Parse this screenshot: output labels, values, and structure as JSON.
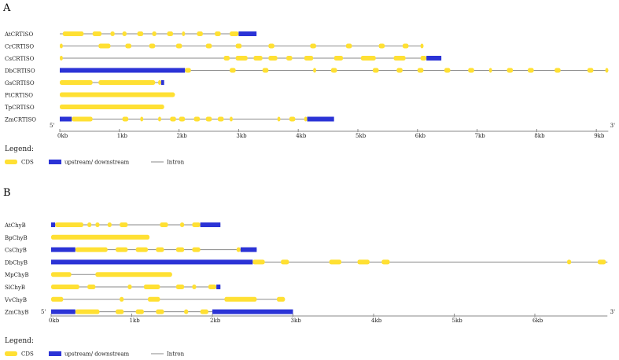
{
  "colors": {
    "cds": "#ffe033",
    "utr": "#2b33d6",
    "intron": "#8a8a8a",
    "axis": "#888888"
  },
  "panels": [
    {
      "letter": "A",
      "five_prime": "5'",
      "three_prime": "3'",
      "ticks": [
        "0kb",
        "1kb",
        "2kb",
        "3kb",
        "4kb",
        "5kb",
        "6kb",
        "7kb",
        "8kb",
        "9kb"
      ],
      "axis_max_kb": 9.2,
      "legend": {
        "title": "Legend:",
        "cds": "CDS",
        "utr": "upstream/ downstream",
        "intron": "Intron"
      },
      "genes": [
        {
          "name": "AtCRTISO",
          "span": [
            0,
            3.3
          ],
          "cds": [
            [
              0.05,
              0.4
            ],
            [
              0.55,
              0.7
            ],
            [
              0.85,
              0.92
            ],
            [
              1.05,
              1.12
            ],
            [
              1.3,
              1.4
            ],
            [
              1.55,
              1.62
            ],
            [
              1.8,
              1.9
            ],
            [
              2.05,
              2.1
            ],
            [
              2.3,
              2.4
            ],
            [
              2.6,
              2.7
            ],
            [
              2.85,
              3.0
            ]
          ],
          "utr": [
            [
              3.0,
              3.3
            ]
          ]
        },
        {
          "name": "CrCRTISO",
          "span": [
            0,
            6.1
          ],
          "cds": [
            [
              0.0,
              0.05
            ],
            [
              0.65,
              0.85
            ],
            [
              1.1,
              1.2
            ],
            [
              1.5,
              1.6
            ],
            [
              1.95,
              2.05
            ],
            [
              2.45,
              2.55
            ],
            [
              2.95,
              3.05
            ],
            [
              3.5,
              3.6
            ],
            [
              4.2,
              4.3
            ],
            [
              4.8,
              4.9
            ],
            [
              5.35,
              5.45
            ],
            [
              5.75,
              5.85
            ],
            [
              6.05,
              6.1
            ]
          ],
          "utr": []
        },
        {
          "name": "CsCRTISO",
          "span": [
            0,
            6.4
          ],
          "cds": [
            [
              0.0,
              0.05
            ],
            [
              2.75,
              2.85
            ],
            [
              2.95,
              3.15
            ],
            [
              3.25,
              3.4
            ],
            [
              3.5,
              3.65
            ],
            [
              3.8,
              3.9
            ],
            [
              4.1,
              4.25
            ],
            [
              4.6,
              4.75
            ],
            [
              5.05,
              5.3
            ],
            [
              5.6,
              5.8
            ],
            [
              6.05,
              6.15
            ]
          ],
          "utr": [
            [
              6.15,
              6.4
            ]
          ]
        },
        {
          "name": "DbCRTISO",
          "span": [
            0,
            9.2
          ],
          "cds": [
            [
              2.1,
              2.2
            ],
            [
              2.85,
              2.95
            ],
            [
              3.4,
              3.5
            ],
            [
              4.25,
              4.3
            ],
            [
              4.55,
              4.65
            ],
            [
              5.25,
              5.35
            ],
            [
              5.65,
              5.75
            ],
            [
              6.0,
              6.1
            ],
            [
              6.45,
              6.55
            ],
            [
              6.85,
              6.95
            ],
            [
              7.2,
              7.25
            ],
            [
              7.5,
              7.6
            ],
            [
              7.85,
              7.95
            ],
            [
              8.3,
              8.4
            ],
            [
              8.85,
              8.95
            ],
            [
              9.15,
              9.2
            ]
          ],
          "utr": [
            [
              0.0,
              2.1
            ]
          ]
        },
        {
          "name": "GsCRTISO",
          "span": [
            0,
            1.75
          ],
          "cds": [
            [
              0.0,
              0.55
            ],
            [
              0.65,
              1.6
            ],
            [
              1.65,
              1.7
            ]
          ],
          "utr": [
            [
              1.7,
              1.75
            ]
          ]
        },
        {
          "name": "PtCRTISO",
          "span": [
            0,
            1.93
          ],
          "cds": [
            [
              0.0,
              1.93
            ]
          ],
          "utr": []
        },
        {
          "name": "TpCRTISO",
          "span": [
            0,
            1.75
          ],
          "cds": [
            [
              0.0,
              1.75
            ]
          ],
          "utr": []
        },
        {
          "name": "ZmCRTISO",
          "span": [
            0,
            4.6
          ],
          "cds": [
            [
              0.2,
              0.55
            ],
            [
              1.05,
              1.15
            ],
            [
              1.35,
              1.4
            ],
            [
              1.65,
              1.7
            ],
            [
              1.85,
              1.95
            ],
            [
              2.0,
              2.1
            ],
            [
              2.25,
              2.35
            ],
            [
              2.45,
              2.55
            ],
            [
              2.65,
              2.75
            ],
            [
              2.85,
              2.9
            ],
            [
              3.65,
              3.7
            ],
            [
              3.85,
              3.95
            ],
            [
              4.1,
              4.15
            ]
          ],
          "utr": [
            [
              0.0,
              0.2
            ],
            [
              4.15,
              4.6
            ]
          ]
        }
      ]
    },
    {
      "letter": "B",
      "five_prime": "5'",
      "three_prime": "3'",
      "ticks": [
        "0kb",
        "1kb",
        "2kb",
        "3kb",
        "4kb",
        "5kb",
        "6kb"
      ],
      "axis_max_kb": 6.9,
      "legend": {
        "title": "Legend:",
        "cds": "CDS",
        "utr": "upstream/ downstream",
        "intron": "Intron"
      },
      "genes": [
        {
          "name": "AtChyB",
          "span": [
            0,
            2.1
          ],
          "cds": [
            [
              0.05,
              0.4
            ],
            [
              0.45,
              0.5
            ],
            [
              0.55,
              0.6
            ],
            [
              0.7,
              0.75
            ],
            [
              0.85,
              0.95
            ],
            [
              1.35,
              1.45
            ],
            [
              1.6,
              1.65
            ],
            [
              1.75,
              1.85
            ]
          ],
          "utr": [
            [
              0.0,
              0.05
            ],
            [
              1.85,
              2.1
            ]
          ]
        },
        {
          "name": "BpChyB",
          "span": [
            0,
            1.22
          ],
          "cds": [
            [
              0.0,
              1.22
            ]
          ],
          "utr": []
        },
        {
          "name": "CsChyB",
          "span": [
            0,
            2.55
          ],
          "cds": [
            [
              0.3,
              0.7
            ],
            [
              0.8,
              0.95
            ],
            [
              1.05,
              1.2
            ],
            [
              1.3,
              1.4
            ],
            [
              1.55,
              1.65
            ],
            [
              1.75,
              1.85
            ],
            [
              2.3,
              2.35
            ]
          ],
          "utr": [
            [
              0.0,
              0.3
            ],
            [
              2.35,
              2.55
            ]
          ]
        },
        {
          "name": "DbChyB",
          "span": [
            0,
            6.9
          ],
          "cds": [
            [
              2.5,
              2.65
            ],
            [
              2.85,
              2.95
            ],
            [
              3.45,
              3.6
            ],
            [
              3.8,
              3.95
            ],
            [
              4.1,
              4.2
            ],
            [
              6.4,
              6.45
            ],
            [
              6.78,
              6.88
            ]
          ],
          "utr": [
            [
              0.0,
              2.5
            ]
          ]
        },
        {
          "name": "MpChyB",
          "span": [
            0,
            1.5
          ],
          "cds": [
            [
              0.0,
              0.25
            ],
            [
              0.55,
              1.5
            ]
          ],
          "utr": []
        },
        {
          "name": "SlChyB",
          "span": [
            0,
            2.1
          ],
          "cds": [
            [
              0.0,
              0.35
            ],
            [
              0.45,
              0.55
            ],
            [
              0.95,
              1.0
            ],
            [
              1.15,
              1.35
            ],
            [
              1.55,
              1.65
            ],
            [
              1.75,
              1.8
            ],
            [
              1.95,
              2.05
            ]
          ],
          "utr": [
            [
              2.05,
              2.1
            ]
          ]
        },
        {
          "name": "VvChyB",
          "span": [
            0,
            2.9
          ],
          "cds": [
            [
              0.0,
              0.15
            ],
            [
              0.85,
              0.9
            ],
            [
              1.2,
              1.35
            ],
            [
              2.15,
              2.55
            ],
            [
              2.8,
              2.9
            ]
          ],
          "utr": []
        },
        {
          "name": "ZmChyB",
          "span": [
            0,
            3.0
          ],
          "cds": [
            [
              0.3,
              0.6
            ],
            [
              0.8,
              0.9
            ],
            [
              1.05,
              1.15
            ],
            [
              1.3,
              1.4
            ],
            [
              1.65,
              1.7
            ],
            [
              1.85,
              1.95
            ]
          ],
          "utr": [
            [
              0.0,
              0.3
            ],
            [
              2.0,
              3.0
            ]
          ]
        }
      ]
    }
  ]
}
